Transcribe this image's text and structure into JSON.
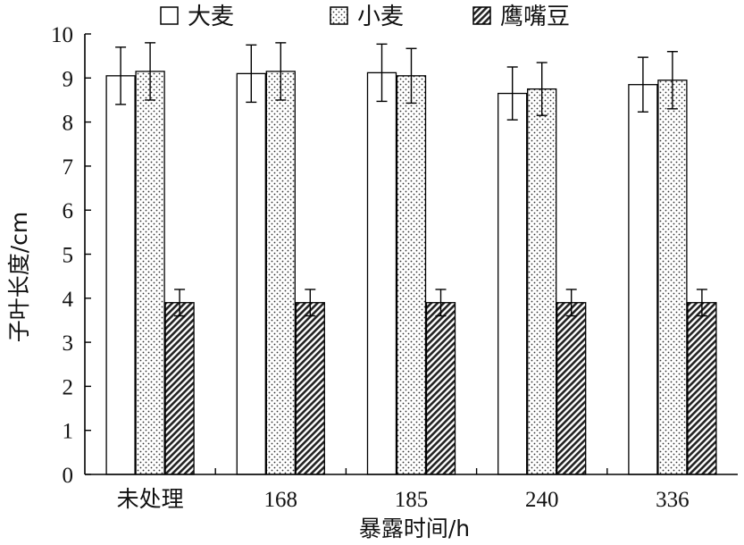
{
  "chart_data": {
    "type": "bar",
    "categories": [
      "未处理",
      "168",
      "185",
      "240",
      "336"
    ],
    "series": [
      {
        "name": "大麦",
        "values": [
          9.05,
          9.1,
          9.12,
          8.65,
          8.85
        ],
        "errors": [
          0.65,
          0.65,
          0.65,
          0.6,
          0.62
        ],
        "pattern": "plain"
      },
      {
        "name": "小麦",
        "values": [
          9.15,
          9.15,
          9.05,
          8.75,
          8.95
        ],
        "errors": [
          0.65,
          0.65,
          0.62,
          0.6,
          0.65
        ],
        "pattern": "dots"
      },
      {
        "name": "鹰嘴豆",
        "values": [
          3.9,
          3.9,
          3.9,
          3.9,
          3.9
        ],
        "errors": [
          0.3,
          0.3,
          0.3,
          0.3,
          0.3
        ],
        "pattern": "hatch"
      }
    ],
    "xlabel": "暴露时间/h",
    "ylabel": "子叶长度/cm",
    "ylim": [
      0,
      10
    ],
    "yticks": [
      0,
      1,
      2,
      3,
      4,
      5,
      6,
      7,
      8,
      9,
      10
    ],
    "legend_position": "top",
    "grid": false
  }
}
